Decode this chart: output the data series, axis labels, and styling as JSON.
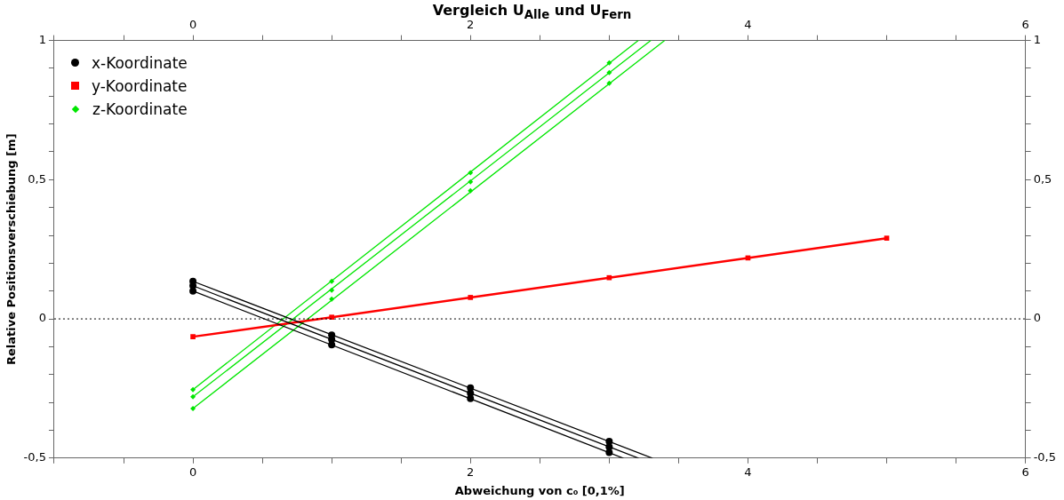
{
  "chart_data": {
    "type": "line",
    "title": "Vergleich U$_{Alle}$ und U$_{Fern}$",
    "xlabel": "Abweichung von c₀ [0,1%]",
    "ylabel": "Relative Positionsverschiebung [m]",
    "xlim": [
      -1,
      6
    ],
    "xticks": [
      {
        "value": -1,
        "label": null
      },
      {
        "value": -0.5,
        "label": null
      },
      0,
      {
        "value": 0.5,
        "label": null
      },
      {
        "value": 1,
        "label": null
      },
      {
        "value": 1.5,
        "label": null
      },
      2,
      {
        "value": 2.5,
        "label": null
      },
      {
        "value": 3,
        "label": null
      },
      {
        "value": 3.5,
        "label": null
      },
      4,
      {
        "value": 4.5,
        "label": null
      },
      {
        "value": 5,
        "label": null
      },
      {
        "value": 5.5,
        "label": null
      },
      6
    ],
    "x2lim": [
      -1,
      6
    ],
    "x2ticks": [
      {
        "value": -1,
        "label": null
      },
      {
        "value": -0.5,
        "label": null
      },
      0,
      {
        "value": 0.5,
        "label": null
      },
      {
        "value": 1,
        "label": null
      },
      {
        "value": 1.5,
        "label": null
      },
      2,
      {
        "value": 2.5,
        "label": null
      },
      {
        "value": 3,
        "label": null
      },
      {
        "value": 3.5,
        "label": null
      },
      4,
      {
        "value": 4.5,
        "label": null
      },
      {
        "value": 5,
        "label": null
      },
      {
        "value": 5.5,
        "label": null
      },
      6
    ],
    "ylim": [
      -0.5,
      1
    ],
    "yticks": [
      {
        "value": -0.5,
        "label": "-0,5"
      },
      {
        "value": -0.4,
        "label": null
      },
      {
        "value": -0.3,
        "label": null
      },
      {
        "value": -0.2,
        "label": null
      },
      {
        "value": -0.1,
        "label": null
      },
      0,
      {
        "value": 0.1,
        "label": null
      },
      {
        "value": 0.2,
        "label": null
      },
      {
        "value": 0.3,
        "label": null
      },
      {
        "value": 0.4,
        "label": null
      },
      {
        "value": 0.5,
        "label": "0,5"
      },
      {
        "value": 0.6,
        "label": null
      },
      {
        "value": 0.7,
        "label": null
      },
      {
        "value": 0.8,
        "label": null
      },
      {
        "value": 0.9,
        "label": null
      },
      1
    ],
    "y2lim": [
      -0.5,
      1
    ],
    "y2ticks": [
      {
        "value": -0.5,
        "label": "-0,5"
      },
      {
        "value": -0.4,
        "label": null
      },
      {
        "value": -0.3,
        "label": null
      },
      {
        "value": -0.2,
        "label": null
      },
      {
        "value": -0.1,
        "label": null
      },
      0,
      {
        "value": 0.1,
        "label": null
      },
      {
        "value": 0.2,
        "label": null
      },
      {
        "value": 0.3,
        "label": null
      },
      {
        "value": 0.4,
        "label": null
      },
      {
        "value": 0.5,
        "label": "0,5"
      },
      {
        "value": 0.6,
        "label": null
      },
      {
        "value": 0.7,
        "label": null
      },
      {
        "value": 0.8,
        "label": null
      },
      {
        "value": 0.9,
        "label": null
      },
      1
    ],
    "grid": false,
    "legend": "top left",
    "ref_lines": [
      {
        "axis": "y",
        "value": 0,
        "color": "#000000",
        "line_style": "dotted"
      }
    ],
    "series": [
      {
        "name": "x-Koordinate",
        "type": "scatter",
        "color": "#000000",
        "marker": "circle",
        "x": [
          0,
          1,
          2,
          3
        ],
        "values": [
          0.135,
          -0.058,
          -0.248,
          -0.44
        ]
      },
      {
        "type": "scatter",
        "color": "#000000",
        "marker": "circle",
        "x": [
          0,
          1,
          2,
          3
        ],
        "values": [
          0.119,
          -0.074,
          -0.267,
          -0.46
        ]
      },
      {
        "type": "scatter",
        "color": "#000000",
        "marker": "circle",
        "x": [
          0,
          1,
          2,
          3
        ],
        "values": [
          0.1,
          -0.093,
          -0.286,
          -0.48
        ]
      },
      {
        "color": "#000000",
        "marker": "none",
        "x": [
          0,
          3.31
        ],
        "values": [
          0.135,
          -0.5
        ]
      },
      {
        "color": "#000000",
        "marker": "none",
        "x": [
          0,
          3.21
        ],
        "values": [
          0.119,
          -0.5
        ]
      },
      {
        "color": "#000000",
        "marker": "none",
        "x": [
          0,
          3.1
        ],
        "values": [
          0.1,
          -0.5
        ]
      },
      {
        "name": "y-Koordinate",
        "color": "#ff0000",
        "marker": "square",
        "x": [
          0,
          1,
          2,
          3,
          4,
          5
        ],
        "values": [
          -0.064,
          0.006,
          0.077,
          0.148,
          0.219,
          0.29
        ]
      },
      {
        "name": "z-Koordinate",
        "type": "scatter",
        "color": "#00e600",
        "marker": "diamond",
        "x": [
          0,
          1,
          2,
          3
        ],
        "values": [
          -0.254,
          0.135,
          0.525,
          0.92
        ]
      },
      {
        "type": "scatter",
        "color": "#00e600",
        "marker": "diamond",
        "x": [
          0,
          1,
          2,
          3
        ],
        "values": [
          -0.28,
          0.103,
          0.492,
          0.885
        ]
      },
      {
        "type": "scatter",
        "color": "#00e600",
        "marker": "diamond",
        "x": [
          0,
          1,
          2,
          3
        ],
        "values": [
          -0.322,
          0.071,
          0.46,
          0.846
        ]
      },
      {
        "color": "#00e600",
        "marker": "none",
        "x": [
          0,
          3.21
        ],
        "values": [
          -0.254,
          1
        ]
      },
      {
        "color": "#00e600",
        "marker": "none",
        "x": [
          0,
          3.3
        ],
        "values": [
          -0.28,
          1
        ]
      },
      {
        "color": "#00e600",
        "marker": "none",
        "x": [
          0,
          3.4
        ],
        "values": [
          -0.322,
          1
        ]
      }
    ]
  }
}
